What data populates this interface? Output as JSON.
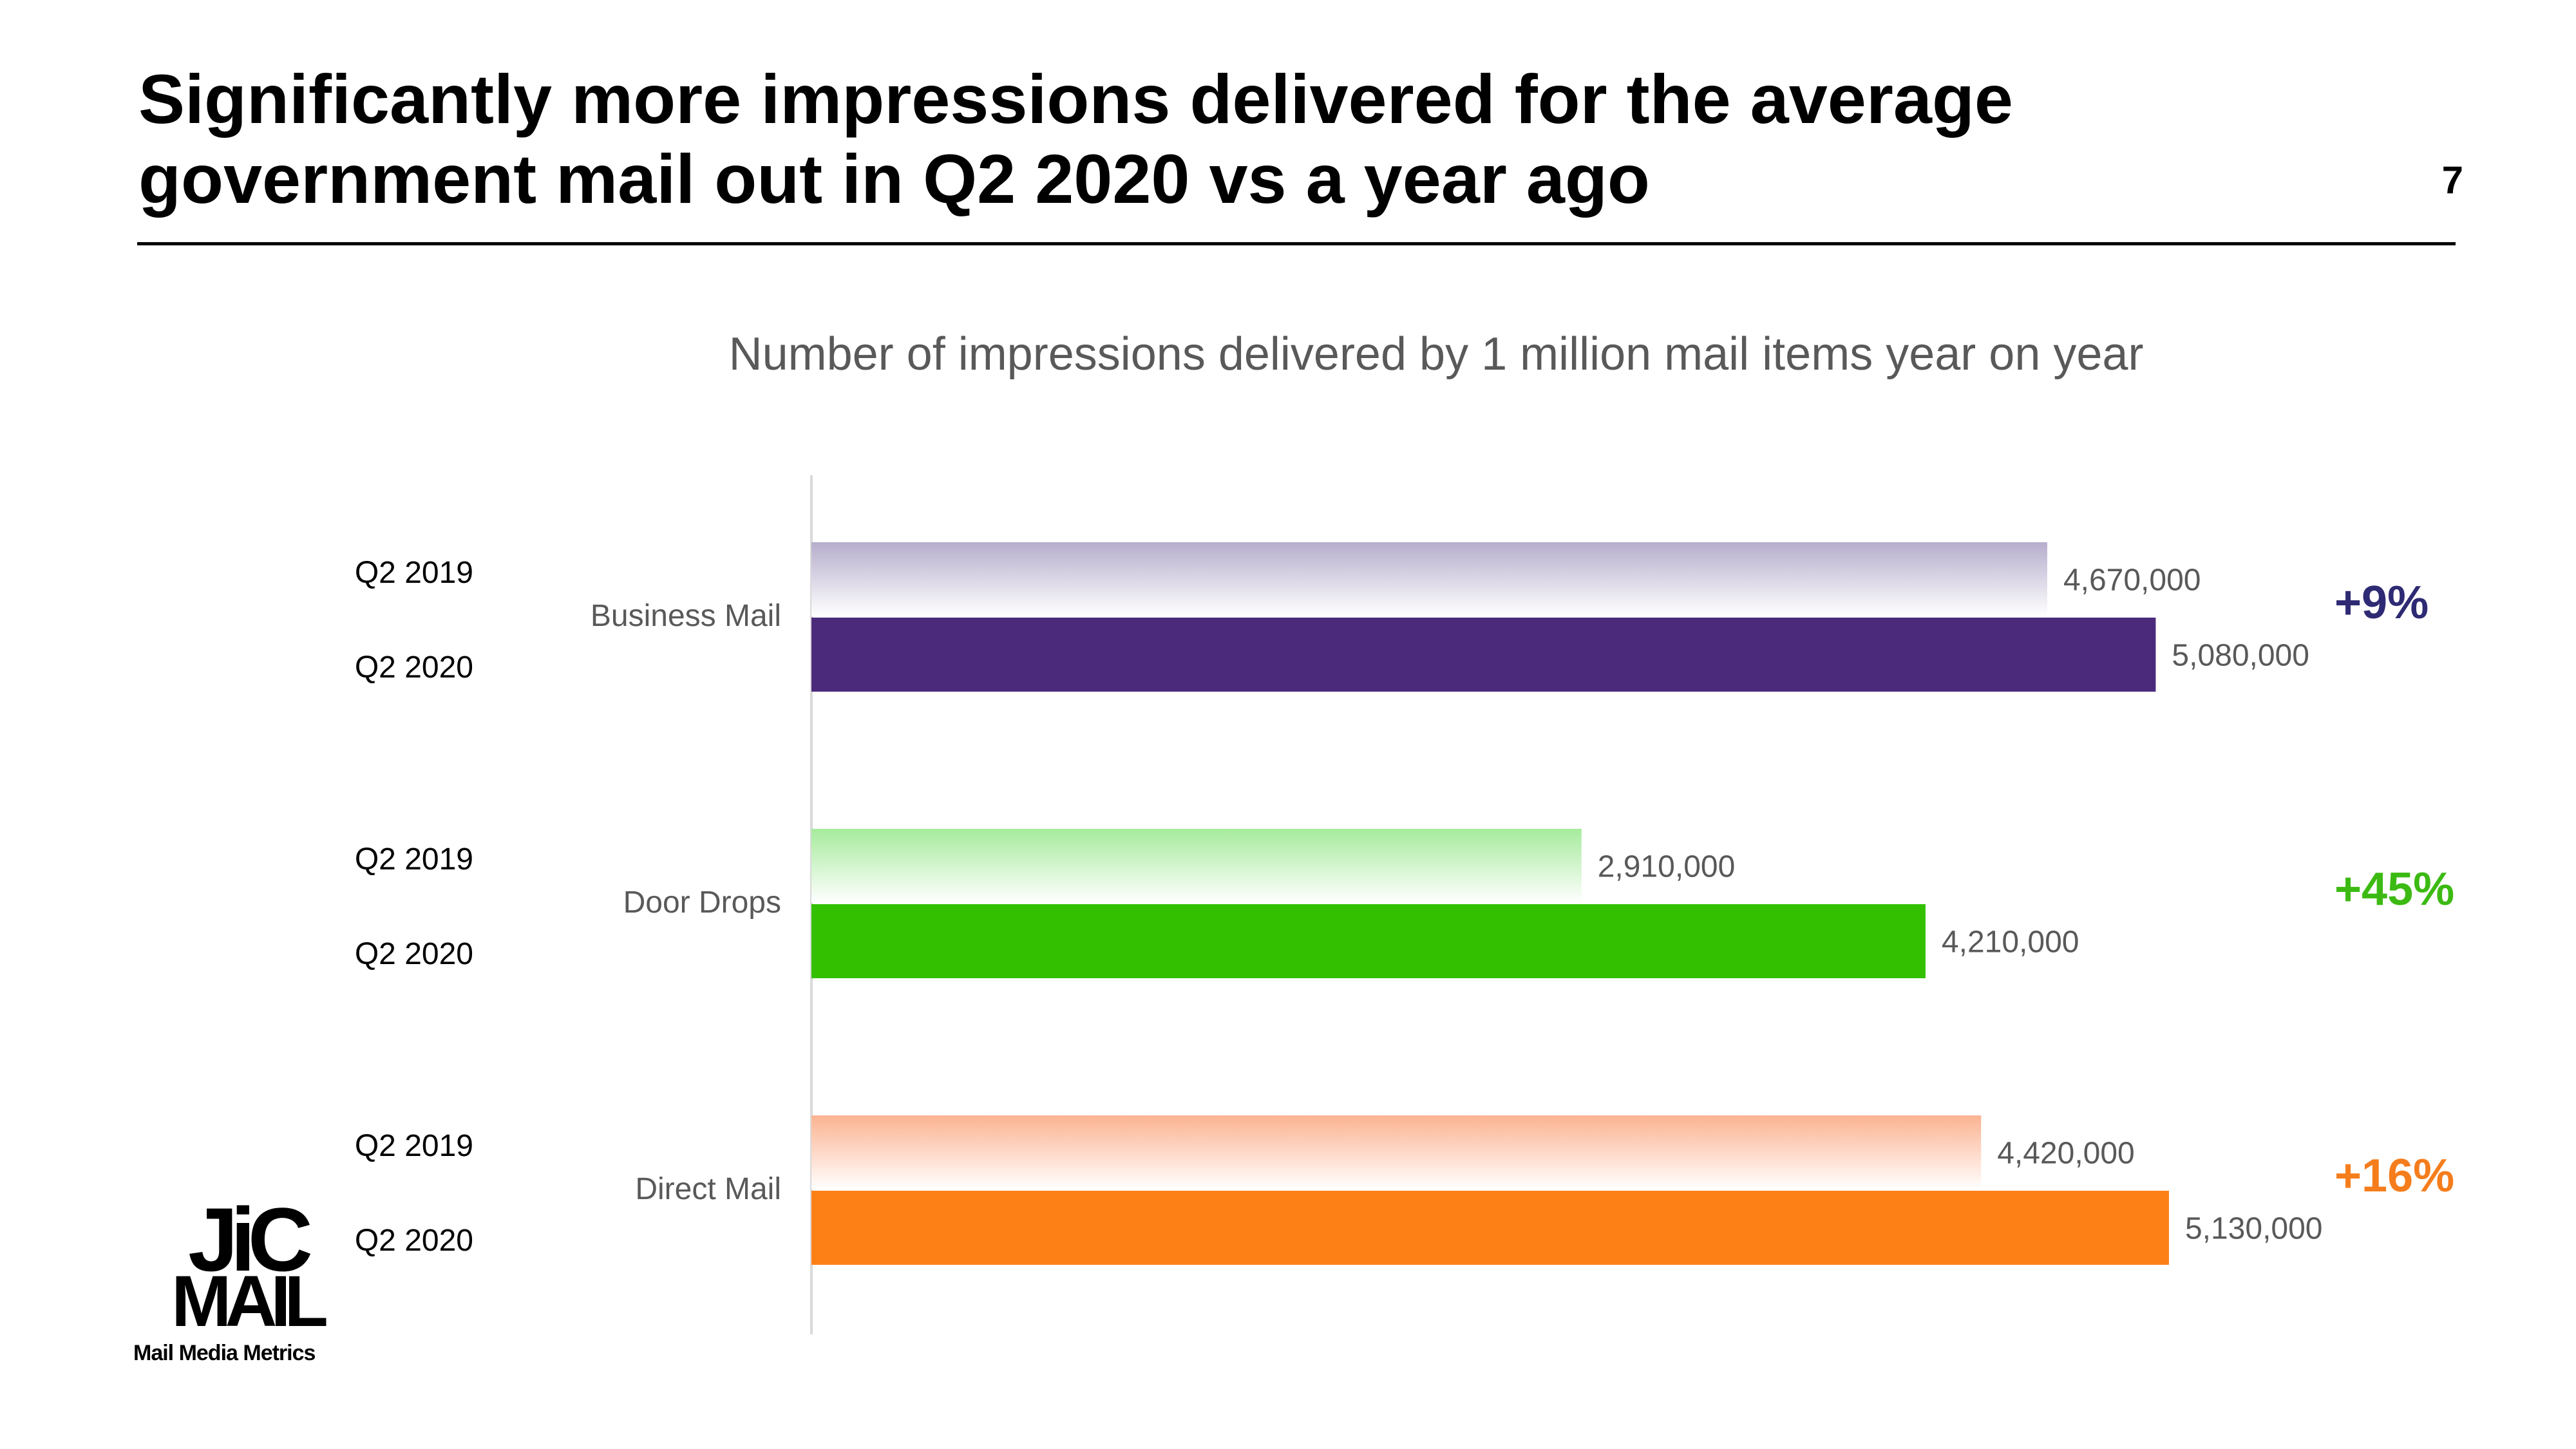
{
  "slide": {
    "title": "Significantly more impressions delivered for the average government mail out in Q2 2020 vs a year ago",
    "page_number": "7"
  },
  "logo": {
    "line1": "JiC",
    "line2": "MAIL",
    "tagline": "Mail Media Metrics"
  },
  "chart_data": {
    "type": "bar",
    "orientation": "horizontal",
    "title": "Number of impressions delivered by 1 million mail items year on year",
    "categories": [
      "Business Mail",
      "Door Drops",
      "Direct Mail"
    ],
    "series": [
      {
        "name": "Q2 2019",
        "values": [
          4670000,
          2910000,
          4420000
        ],
        "labels": [
          "4,670,000",
          "2,910,000",
          "4,420,000"
        ]
      },
      {
        "name": "Q2 2020",
        "values": [
          5080000,
          4210000,
          5130000
        ],
        "labels": [
          "5,080,000",
          "4,210,000",
          "5,130,000"
        ]
      }
    ],
    "xlim": [
      0,
      5500000
    ],
    "grid": false,
    "changes": [
      "+9%",
      "+45%",
      "+16%"
    ],
    "colors": {
      "Business Mail": {
        "Q2 2019": "#b6adcc",
        "Q2 2020": "#4b2a7b",
        "change": "#2e2a73"
      },
      "Door Drops": {
        "Q2 2019": "#a6eb9c",
        "Q2 2020": "#33c000",
        "change": "#3cba13"
      },
      "Direct Mail": {
        "Q2 2019": "#fbb391",
        "Q2 2020": "#fd8017",
        "change": "#f57d1c"
      }
    },
    "label_color": "#595959"
  }
}
